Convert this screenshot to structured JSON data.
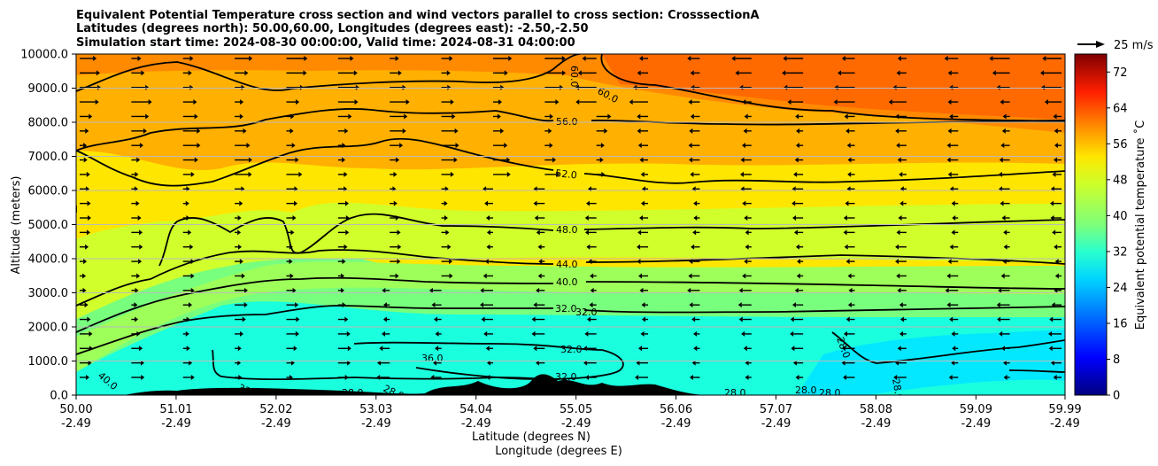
{
  "chart_data": {
    "type": "heatmap",
    "title_lines": [
      "Equivalent Potential Temperature cross section and wind vectors parallel to cross section: CrosssectionA",
      "Latitudes (degrees north): 50.00,60.00, Longitudes (degrees east): -2.50,-2.50",
      "Simulation start time: 2024-08-30 00:00:00, Valid time: 2024-08-31 04:00:00"
    ],
    "xlabel": "Latitude (degrees N)",
    "xlabel2": "Longitude (degrees E)",
    "ylabel": "Altitude (meters)",
    "x_ticks_lat": [
      "50.00",
      "51.01",
      "52.02",
      "53.03",
      "54.04",
      "55.05",
      "56.06",
      "57.07",
      "58.08",
      "59.09",
      "59.99"
    ],
    "x_ticks_lon": [
      "-2.49",
      "-2.49",
      "-2.49",
      "-2.49",
      "-2.49",
      "-2.49",
      "-2.49",
      "-2.49",
      "-2.49",
      "-2.49",
      "-2.49"
    ],
    "y_ticks": [
      "0.0",
      "1000.0",
      "2000.0",
      "3000.0",
      "4000.0",
      "5000.0",
      "6000.0",
      "7000.0",
      "8000.0",
      "9000.0",
      "10000.0"
    ],
    "ylim": [
      0,
      10000
    ],
    "colorbar": {
      "label": "Equivalent potential temperature ˚C",
      "range": [
        0,
        76
      ],
      "ticks": [
        "0",
        "8",
        "16",
        "24",
        "32",
        "40",
        "48",
        "56",
        "64",
        "72"
      ]
    },
    "quiver_key": "25 m/s",
    "contour_labels": [
      "60.0",
      "60.0",
      "56.0",
      "52.0",
      "48.0",
      "44.0",
      "40.0",
      "32.0",
      "32.0",
      "32.0",
      "36.0",
      "32.0",
      "28.0",
      "40.0",
      "28.0",
      "28.0",
      "28.0",
      "28.0",
      "28.0",
      "32.0",
      "28.0"
    ],
    "theta_e_profile": [
      {
        "altitude": 0,
        "value": 33
      },
      {
        "altitude": 1000,
        "value": 33
      },
      {
        "altitude": 2000,
        "value": 34
      },
      {
        "altitude": 3000,
        "value": 40
      },
      {
        "altitude": 4000,
        "value": 44
      },
      {
        "altitude": 5000,
        "value": 48
      },
      {
        "altitude": 6000,
        "value": 51
      },
      {
        "altitude": 7000,
        "value": 54
      },
      {
        "altitude": 8000,
        "value": 57
      },
      {
        "altitude": 9000,
        "value": 59
      },
      {
        "altitude": 10000,
        "value": 61
      }
    ],
    "colors": {
      "sky_top": "#ff6a00",
      "upper": "#ffaa00",
      "mid": "#ffe600",
      "lower_mid": "#d2ff2c",
      "low": "#3dffbb",
      "surface": "#0fffe0"
    }
  }
}
